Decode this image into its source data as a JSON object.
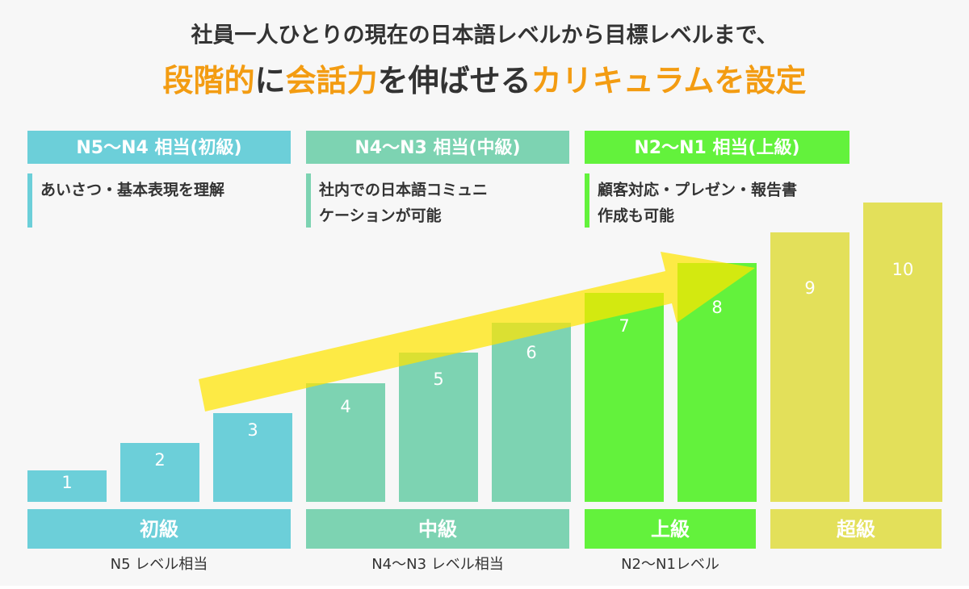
{
  "header": {
    "line1": "社員一人ひとりの現在の日本語レベルから目標レベルまで、",
    "line2": [
      "段階的",
      "に",
      "会話力",
      "を伸ばせる",
      "カリキュラムを設定"
    ]
  },
  "groups": [
    {
      "title": "N5〜N4 相当(初級)",
      "description": [
        "あいさつ・基本表現を理解"
      ]
    },
    {
      "title": "N4〜N3 相当(中級)",
      "description": [
        "社内での日本語コミュニ",
        "ケーションが可能"
      ]
    },
    {
      "title": "N2〜N1 相当(上級)",
      "description": [
        "顧客対応・プレゼン・報告書",
        "作成も可能"
      ]
    }
  ],
  "steps": [
    "1",
    "2",
    "3",
    "4",
    "5",
    "6",
    "7",
    "8",
    "9",
    "10"
  ],
  "levels": [
    {
      "name": "初級",
      "note": "N5 レベル相当"
    },
    {
      "name": "中級",
      "note": "N4〜N3 レベル相当"
    },
    {
      "name": "上級",
      "note": "N2〜N1レベル"
    },
    {
      "name": "超級"
    }
  ]
}
